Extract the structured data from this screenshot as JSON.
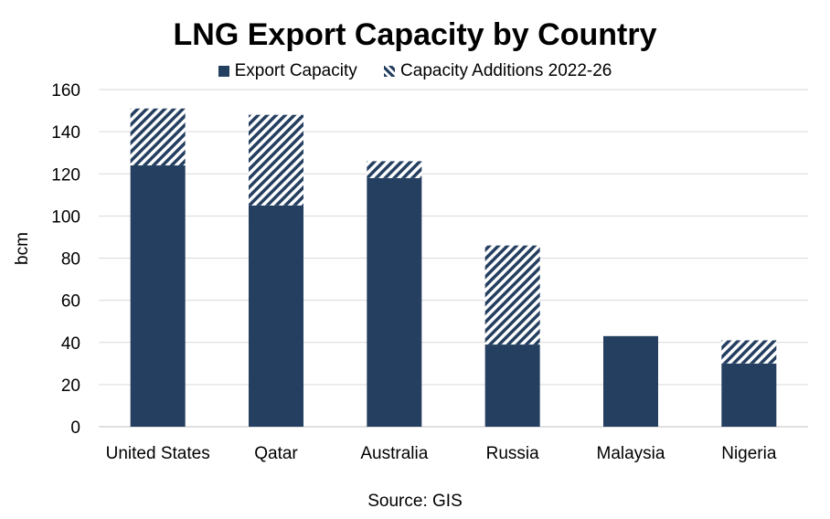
{
  "chart_data": {
    "type": "bar",
    "stacked": true,
    "title": "LNG Export Capacity by Country",
    "ylabel": "bcm",
    "xlabel": "",
    "source": "Source: GIS",
    "ylim": [
      0,
      160
    ],
    "yticks": [
      0,
      20,
      40,
      60,
      80,
      100,
      120,
      140,
      160
    ],
    "grid": true,
    "legend_position": "top",
    "categories": [
      "United States",
      "Qatar",
      "Australia",
      "Russia",
      "Malaysia",
      "Nigeria"
    ],
    "series": [
      {
        "name": "Export Capacity",
        "values": [
          124,
          105,
          118,
          39,
          43,
          30
        ],
        "color": "#243F60",
        "pattern": "solid"
      },
      {
        "name": "Capacity Additions 2022-26",
        "values": [
          27,
          43,
          8,
          47,
          0,
          11
        ],
        "color": "#243F60",
        "pattern": "diagonal-stripes"
      }
    ]
  }
}
